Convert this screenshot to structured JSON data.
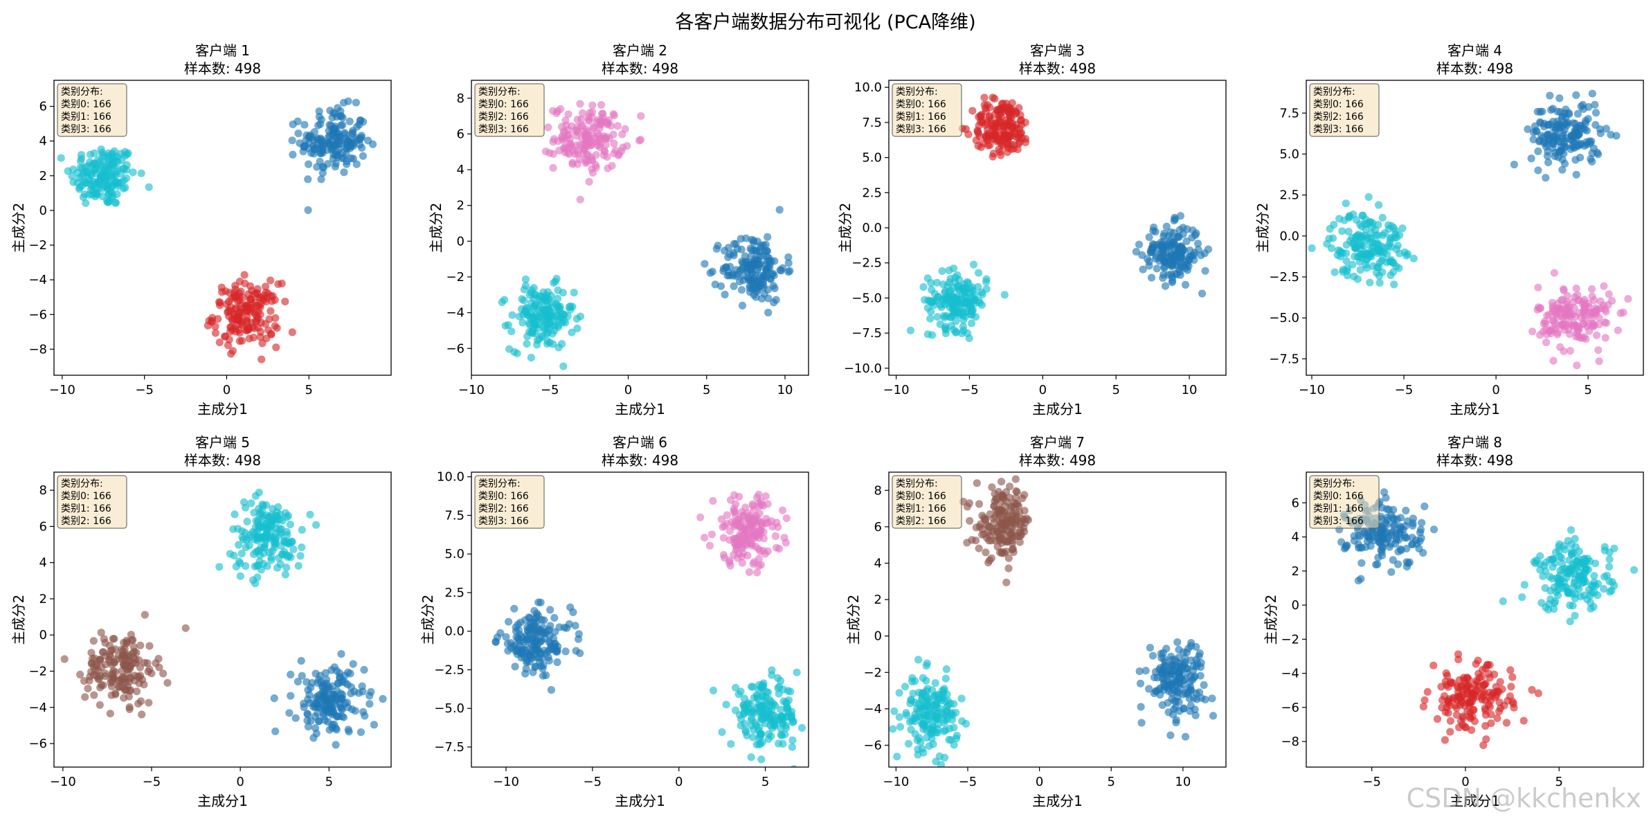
{
  "figure": {
    "title": "各客户端数据分布可视化 (PCA降维)",
    "watermark": "CSDN @kkchenkx"
  },
  "chart_data": [
    {
      "type": "scatter",
      "title": "客户端 1",
      "subtitle": "样本数: 498",
      "xlabel": "主成分1",
      "ylabel": "主成分2",
      "xlim": [
        -10.5,
        10
      ],
      "ylim": [
        -9.5,
        7.5
      ],
      "xticks": [
        -10,
        -5,
        0,
        5
      ],
      "yticks": [
        -8,
        -6,
        -4,
        -2,
        0,
        2,
        4,
        6
      ],
      "legend_lines": [
        "类别分布:",
        "类别0: 166",
        "类别1: 166",
        "类别3: 166"
      ],
      "series": [
        {
          "color": "#17becf",
          "center": [
            -7.5,
            2.0
          ],
          "spread": [
            1.0,
            0.9
          ],
          "count": 166
        },
        {
          "color": "#1f77b4",
          "center": [
            6.5,
            4.0
          ],
          "spread": [
            1.0,
            0.95
          ],
          "count": 166
        },
        {
          "color": "#d62728",
          "center": [
            1.2,
            -6.0
          ],
          "spread": [
            1.0,
            0.9
          ],
          "count": 166
        }
      ]
    },
    {
      "type": "scatter",
      "title": "客户端 2",
      "subtitle": "样本数: 498",
      "xlabel": "主成分1",
      "ylabel": "主成分2",
      "xlim": [
        -10,
        11.5
      ],
      "ylim": [
        -7.5,
        9
      ],
      "xticks": [
        -10,
        -5,
        0,
        5,
        10
      ],
      "yticks": [
        -6,
        -4,
        -2,
        0,
        2,
        4,
        6,
        8
      ],
      "legend_lines": [
        "类别分布:",
        "类别0: 166",
        "类别2: 166",
        "类别3: 166"
      ],
      "series": [
        {
          "color": "#e377c2",
          "center": [
            -2.5,
            5.8
          ],
          "spread": [
            1.1,
            0.9
          ],
          "count": 166
        },
        {
          "color": "#17becf",
          "center": [
            -5.5,
            -4.3
          ],
          "spread": [
            1.0,
            0.9
          ],
          "count": 166
        },
        {
          "color": "#1f77b4",
          "center": [
            8.0,
            -1.5
          ],
          "spread": [
            1.0,
            0.95
          ],
          "count": 166
        }
      ]
    },
    {
      "type": "scatter",
      "title": "客户端 3",
      "subtitle": "样本数: 498",
      "xlabel": "主成分1",
      "ylabel": "主成分2",
      "xlim": [
        -10.5,
        12.5
      ],
      "ylim": [
        -10.5,
        10.5
      ],
      "xticks": [
        -10,
        -5,
        0,
        5,
        10
      ],
      "yticks": [
        -10.0,
        -7.5,
        -5.0,
        -2.5,
        0.0,
        2.5,
        5.0,
        7.5,
        10.0
      ],
      "legend_lines": [
        "类别分布:",
        "类别0: 166",
        "类别1: 166",
        "类别3: 166"
      ],
      "series": [
        {
          "color": "#d62728",
          "center": [
            -2.8,
            7.2
          ],
          "spread": [
            1.0,
            1.0
          ],
          "count": 166
        },
        {
          "color": "#17becf",
          "center": [
            -5.8,
            -5.2
          ],
          "spread": [
            1.0,
            1.0
          ],
          "count": 166
        },
        {
          "color": "#1f77b4",
          "center": [
            8.8,
            -1.8
          ],
          "spread": [
            1.0,
            1.0
          ],
          "count": 166
        }
      ]
    },
    {
      "type": "scatter",
      "title": "客户端 4",
      "subtitle": "样本数: 498",
      "xlabel": "主成分1",
      "ylabel": "主成分2",
      "xlim": [
        -10.3,
        8
      ],
      "ylim": [
        -8.5,
        9.5
      ],
      "xticks": [
        -10,
        -5,
        0,
        5
      ],
      "yticks": [
        -7.5,
        -5.0,
        -2.5,
        0.0,
        2.5,
        5.0,
        7.5
      ],
      "legend_lines": [
        "类别分布:",
        "类别0: 166",
        "类别2: 166",
        "类别3: 166"
      ],
      "series": [
        {
          "color": "#1f77b4",
          "center": [
            3.8,
            6.2
          ],
          "spread": [
            0.95,
            1.0
          ],
          "count": 166
        },
        {
          "color": "#17becf",
          "center": [
            -7.0,
            -0.5
          ],
          "spread": [
            1.0,
            1.0
          ],
          "count": 166
        },
        {
          "color": "#e377c2",
          "center": [
            4.3,
            -5.0
          ],
          "spread": [
            1.0,
            1.0
          ],
          "count": 166
        }
      ]
    },
    {
      "type": "scatter",
      "title": "客户端 5",
      "subtitle": "样本数: 498",
      "xlabel": "主成分1",
      "ylabel": "主成分2",
      "xlim": [
        -10.5,
        8.5
      ],
      "ylim": [
        -7.3,
        9.0
      ],
      "xticks": [
        -10,
        -5,
        0,
        5
      ],
      "yticks": [
        -6,
        -4,
        -2,
        0,
        2,
        4,
        6,
        8
      ],
      "legend_lines": [
        "类别分布:",
        "类别0: 166",
        "类别1: 166",
        "类别2: 166"
      ],
      "series": [
        {
          "color": "#17becf",
          "center": [
            1.5,
            5.5
          ],
          "spread": [
            1.0,
            1.0
          ],
          "count": 166
        },
        {
          "color": "#8c564b",
          "center": [
            -6.7,
            -1.8
          ],
          "spread": [
            1.0,
            1.0
          ],
          "count": 166
        },
        {
          "color": "#1f77b4",
          "center": [
            5.0,
            -3.7
          ],
          "spread": [
            1.0,
            0.95
          ],
          "count": 166
        }
      ]
    },
    {
      "type": "scatter",
      "title": "客户端 6",
      "subtitle": "样本数: 498",
      "xlabel": "主成分1",
      "ylabel": "主成分2",
      "xlim": [
        -12,
        7.5
      ],
      "ylim": [
        -8.8,
        10.3
      ],
      "xticks": [
        -10,
        -5,
        0,
        5
      ],
      "yticks": [
        -7.5,
        -5.0,
        -2.5,
        0.0,
        2.5,
        5.0,
        7.5,
        10.0
      ],
      "legend_lines": [
        "类别分布:",
        "类别0: 166",
        "类别2: 166",
        "类别3: 166"
      ],
      "series": [
        {
          "color": "#e377c2",
          "center": [
            4.0,
            6.5
          ],
          "spread": [
            1.0,
            1.1
          ],
          "count": 166
        },
        {
          "color": "#1f77b4",
          "center": [
            -8.3,
            -0.7
          ],
          "spread": [
            1.05,
            1.0
          ],
          "count": 166
        },
        {
          "color": "#17becf",
          "center": [
            5.0,
            -5.5
          ],
          "spread": [
            1.0,
            1.0
          ],
          "count": 166
        }
      ]
    },
    {
      "type": "scatter",
      "title": "客户端 7",
      "subtitle": "样本数: 498",
      "xlabel": "主成分1",
      "ylabel": "主成分2",
      "xlim": [
        -10.5,
        13
      ],
      "ylim": [
        -7.2,
        9.0
      ],
      "xticks": [
        -10,
        -5,
        0,
        5,
        10
      ],
      "yticks": [
        -6,
        -4,
        -2,
        0,
        2,
        4,
        6,
        8
      ],
      "legend_lines": [
        "类别分布:",
        "类别0: 166",
        "类别1: 166",
        "类别2: 166"
      ],
      "series": [
        {
          "color": "#8c564b",
          "center": [
            -2.5,
            6.2
          ],
          "spread": [
            0.95,
            0.95
          ],
          "count": 166
        },
        {
          "color": "#17becf",
          "center": [
            -7.6,
            -4.3
          ],
          "spread": [
            0.95,
            1.0
          ],
          "count": 166
        },
        {
          "color": "#1f77b4",
          "center": [
            9.5,
            -2.3
          ],
          "spread": [
            1.0,
            1.0
          ],
          "count": 166
        }
      ]
    },
    {
      "type": "scatter",
      "title": "客户端 8",
      "subtitle": "样本数: 498",
      "xlabel": "主成分1",
      "ylabel": "主成分2",
      "xlim": [
        -8.5,
        9.5
      ],
      "ylim": [
        -9.5,
        7.8
      ],
      "xticks": [
        -5,
        0,
        5
      ],
      "yticks": [
        -8,
        -6,
        -4,
        -2,
        0,
        2,
        4,
        6
      ],
      "legend_lines": [
        "类别分布:",
        "类别0: 166",
        "类别1: 166",
        "类别3: 166"
      ],
      "series": [
        {
          "color": "#1f77b4",
          "center": [
            -4.3,
            4.2
          ],
          "spread": [
            1.0,
            1.0
          ],
          "count": 166
        },
        {
          "color": "#17becf",
          "center": [
            5.8,
            1.7
          ],
          "spread": [
            1.05,
            1.0
          ],
          "count": 166
        },
        {
          "color": "#d62728",
          "center": [
            0.3,
            -5.5
          ],
          "spread": [
            1.1,
            0.95
          ],
          "count": 166
        }
      ]
    }
  ]
}
